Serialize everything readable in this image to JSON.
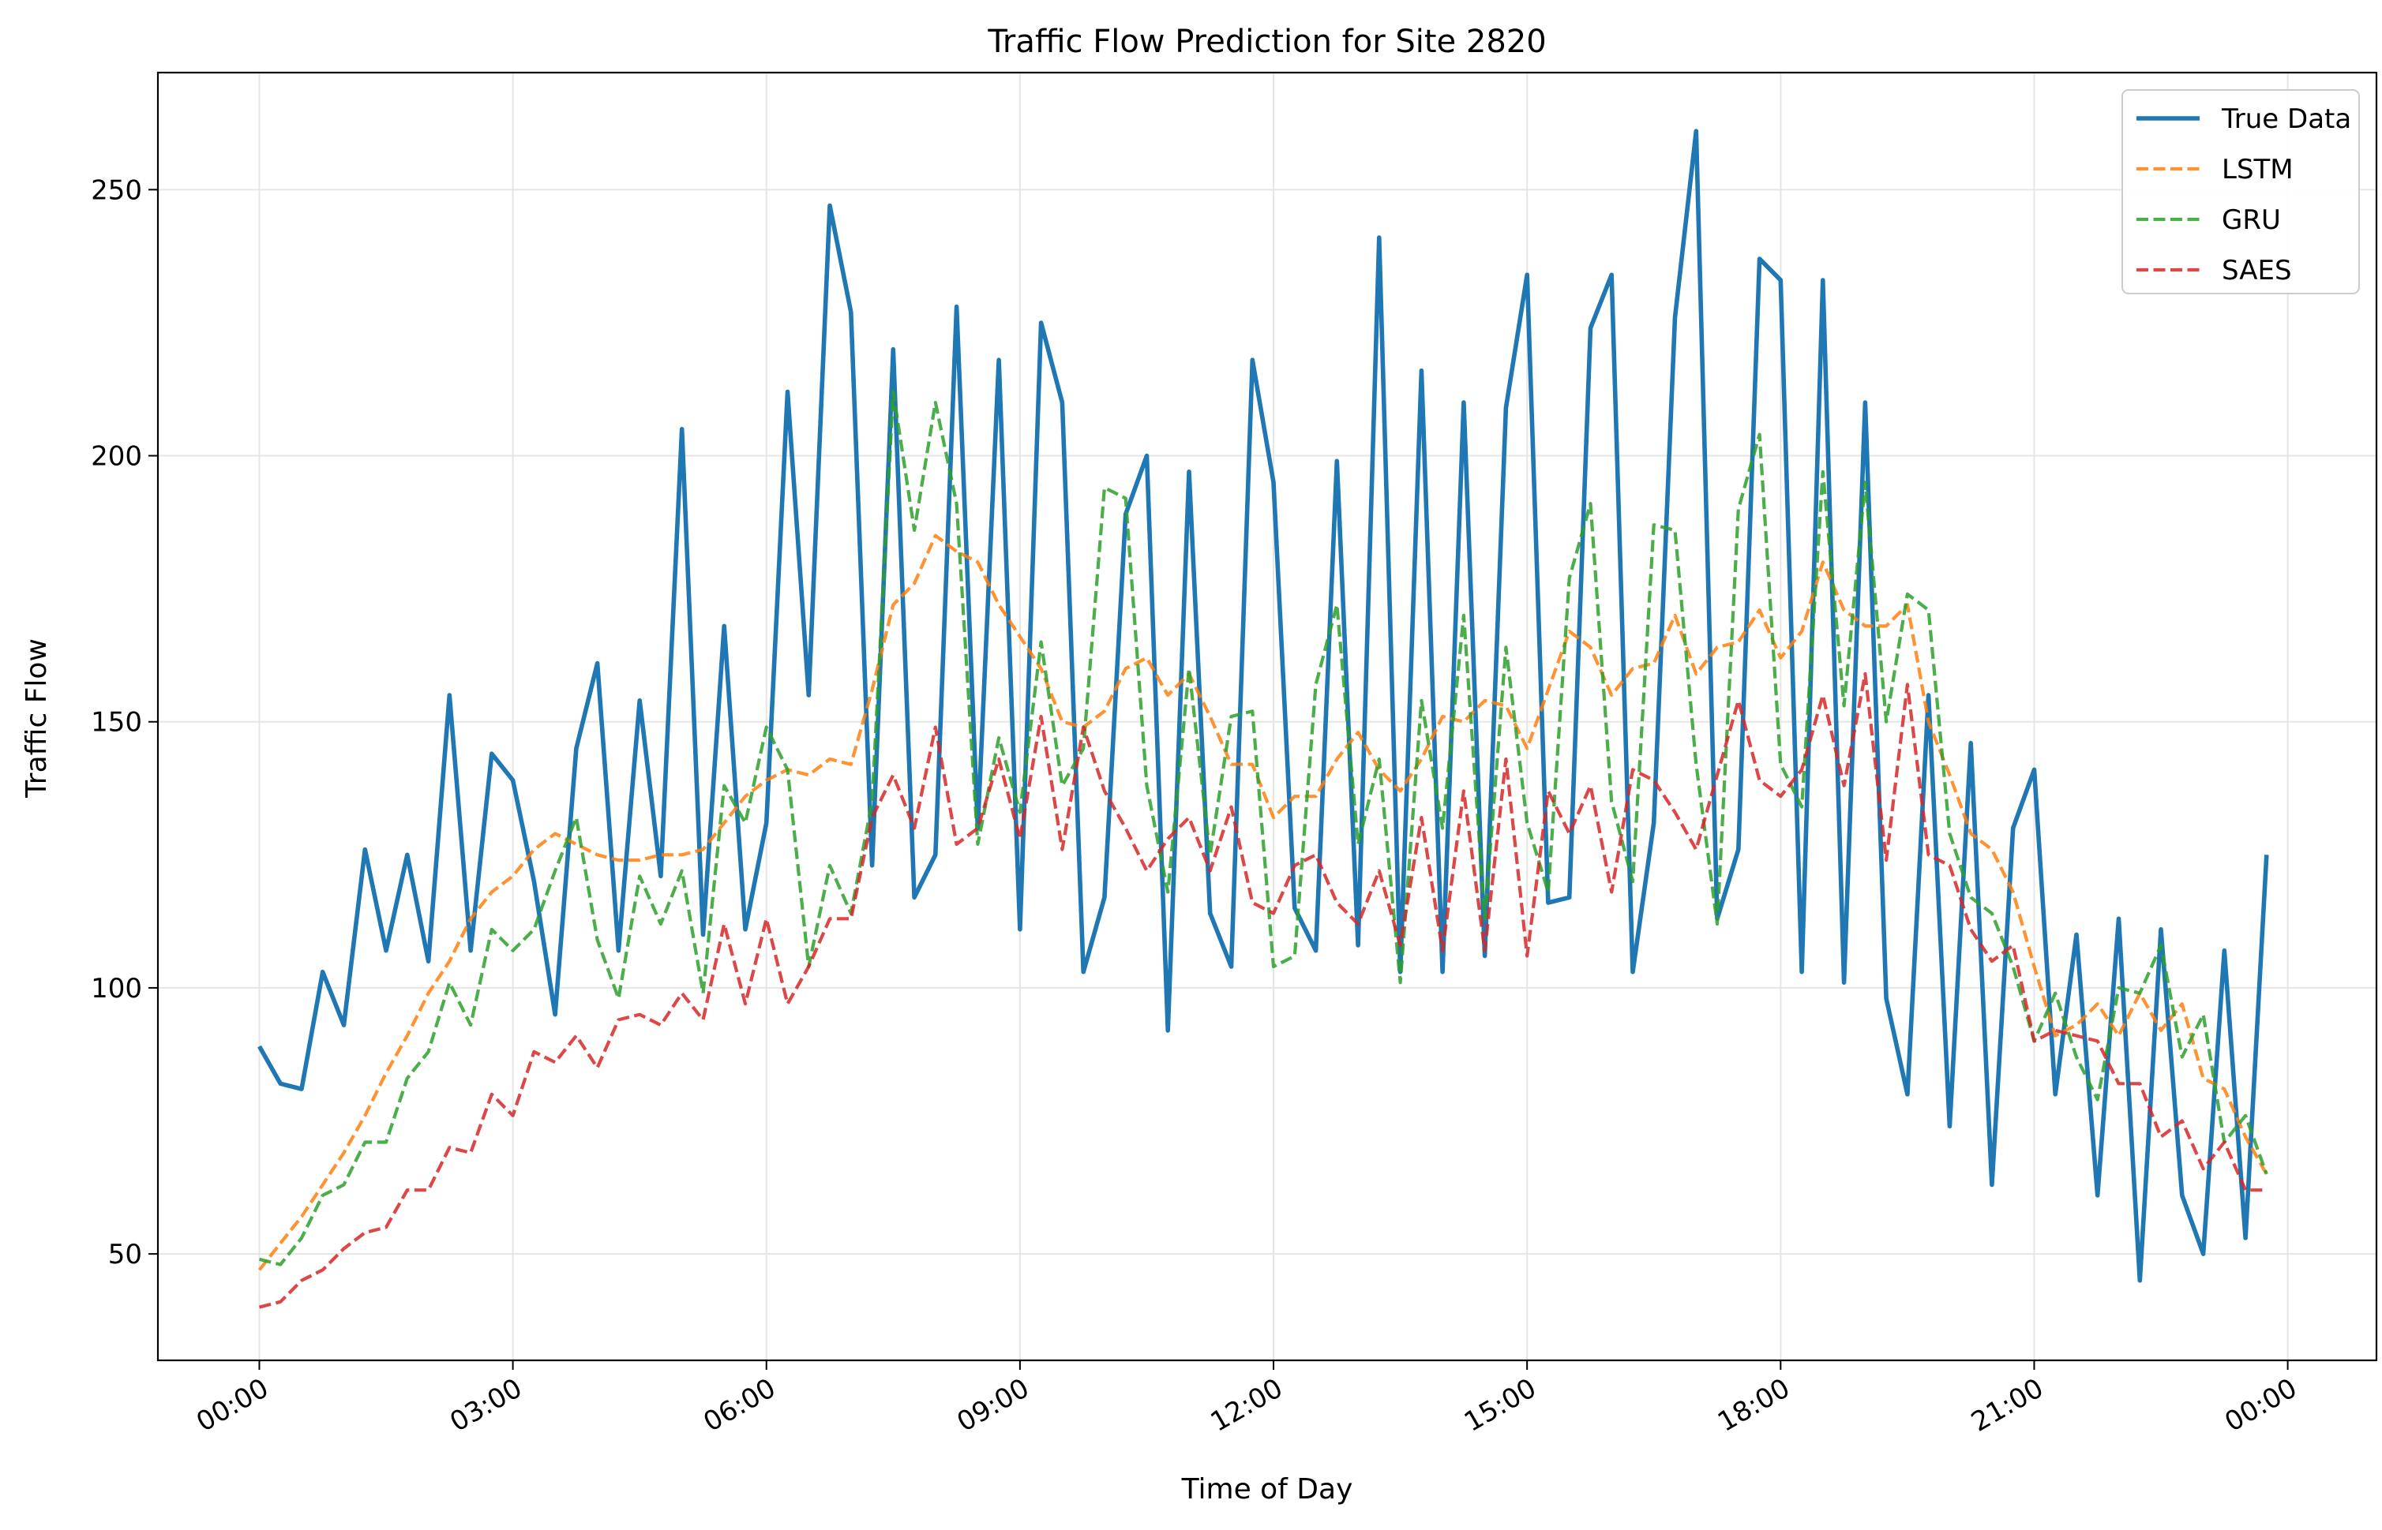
{
  "chart_data": {
    "type": "line",
    "title": "Traffic Flow Prediction for Site 2820",
    "xlabel": "Time of Day",
    "ylabel": "Traffic Flow",
    "x_unit": "minutes since 00:00",
    "x_step_minutes": 15,
    "xlim": [
      -72,
      1503
    ],
    "ylim": [
      30,
      272
    ],
    "xticks": [
      0,
      180,
      360,
      540,
      720,
      900,
      1080,
      1260,
      1440
    ],
    "xtick_labels": [
      "00:00",
      "03:00",
      "06:00",
      "09:00",
      "12:00",
      "15:00",
      "18:00",
      "21:00",
      "00:00"
    ],
    "yticks": [
      50,
      100,
      150,
      200,
      250
    ],
    "grid": true,
    "legend_position": "upper right",
    "series": [
      {
        "name": "True Data",
        "color": "#1f77b4",
        "style": "solid",
        "values": [
          89,
          82,
          81,
          103,
          93,
          126,
          107,
          125,
          105,
          155,
          107,
          144,
          139,
          120,
          95,
          145,
          161,
          107,
          154,
          121,
          205,
          110,
          168,
          111,
          131,
          212,
          155,
          247,
          227,
          123,
          220,
          117,
          125,
          228,
          130,
          218,
          111,
          225,
          210,
          103,
          117,
          189,
          200,
          92,
          197,
          114,
          104,
          218,
          195,
          115,
          107,
          199,
          108,
          241,
          103,
          216,
          103,
          210,
          106,
          209,
          234,
          116,
          117,
          224,
          234,
          103,
          131,
          226,
          261,
          113,
          126,
          237,
          233,
          103,
          233,
          101,
          210,
          98,
          80,
          155,
          74,
          146,
          63,
          130,
          141,
          80,
          110,
          61,
          113,
          45,
          111,
          61,
          50,
          107,
          53,
          125
        ]
      },
      {
        "name": "LSTM",
        "color": "#ff7f0e",
        "style": "dashed",
        "values": [
          47,
          52,
          57,
          63,
          69,
          76,
          84,
          91,
          99,
          105,
          113,
          118,
          121,
          126,
          129,
          127,
          125,
          124,
          124,
          125,
          125,
          126,
          131,
          136,
          139,
          141,
          140,
          143,
          142,
          156,
          172,
          176,
          185,
          182,
          180,
          172,
          166,
          160,
          150,
          149,
          152,
          160,
          162,
          155,
          159,
          151,
          142,
          142,
          132,
          136,
          136,
          143,
          148,
          141,
          137,
          143,
          151,
          150,
          154,
          153,
          145,
          156,
          167,
          164,
          155,
          160,
          161,
          170,
          159,
          164,
          165,
          171,
          162,
          167,
          180,
          171,
          168,
          168,
          172,
          150,
          140,
          129,
          126,
          118,
          104,
          91,
          93,
          97,
          91,
          99,
          92,
          97,
          83,
          81,
          72,
          65
        ]
      },
      {
        "name": "GRU",
        "color": "#2ca02c",
        "style": "dashed",
        "values": [
          49,
          48,
          53,
          61,
          63,
          71,
          71,
          83,
          88,
          101,
          93,
          111,
          107,
          111,
          122,
          132,
          109,
          98,
          121,
          112,
          122,
          99,
          138,
          131,
          149,
          141,
          104,
          123,
          114,
          135,
          212,
          186,
          210,
          191,
          127,
          147,
          133,
          165,
          138,
          145,
          194,
          192,
          138,
          118,
          160,
          125,
          151,
          152,
          104,
          106,
          157,
          172,
          127,
          143,
          101,
          154,
          130,
          170,
          113,
          164,
          131,
          118,
          177,
          191,
          135,
          120,
          187,
          186,
          142,
          112,
          190,
          204,
          142,
          134,
          197,
          153,
          195,
          150,
          174,
          171,
          129,
          117,
          114,
          104,
          90,
          99,
          87,
          79,
          100,
          99,
          108,
          87,
          95,
          71,
          76,
          65
        ]
      },
      {
        "name": "SAES",
        "color": "#d62728",
        "style": "dashed",
        "values": [
          40,
          41,
          45,
          47,
          51,
          54,
          55,
          62,
          62,
          70,
          69,
          80,
          76,
          88,
          86,
          91,
          85,
          94,
          95,
          93,
          99,
          94,
          112,
          97,
          113,
          97,
          104,
          113,
          113,
          132,
          140,
          130,
          149,
          127,
          130,
          143,
          128,
          151,
          126,
          149,
          137,
          130,
          122,
          128,
          132,
          122,
          134,
          116,
          114,
          123,
          125,
          116,
          112,
          122,
          108,
          132,
          107,
          137,
          107,
          143,
          106,
          137,
          129,
          138,
          118,
          141,
          139,
          133,
          126,
          140,
          154,
          139,
          136,
          141,
          155,
          138,
          159,
          124,
          157,
          125,
          123,
          111,
          105,
          108,
          90,
          92,
          91,
          90,
          82,
          82,
          72,
          75,
          66,
          71,
          62,
          62
        ]
      }
    ]
  }
}
